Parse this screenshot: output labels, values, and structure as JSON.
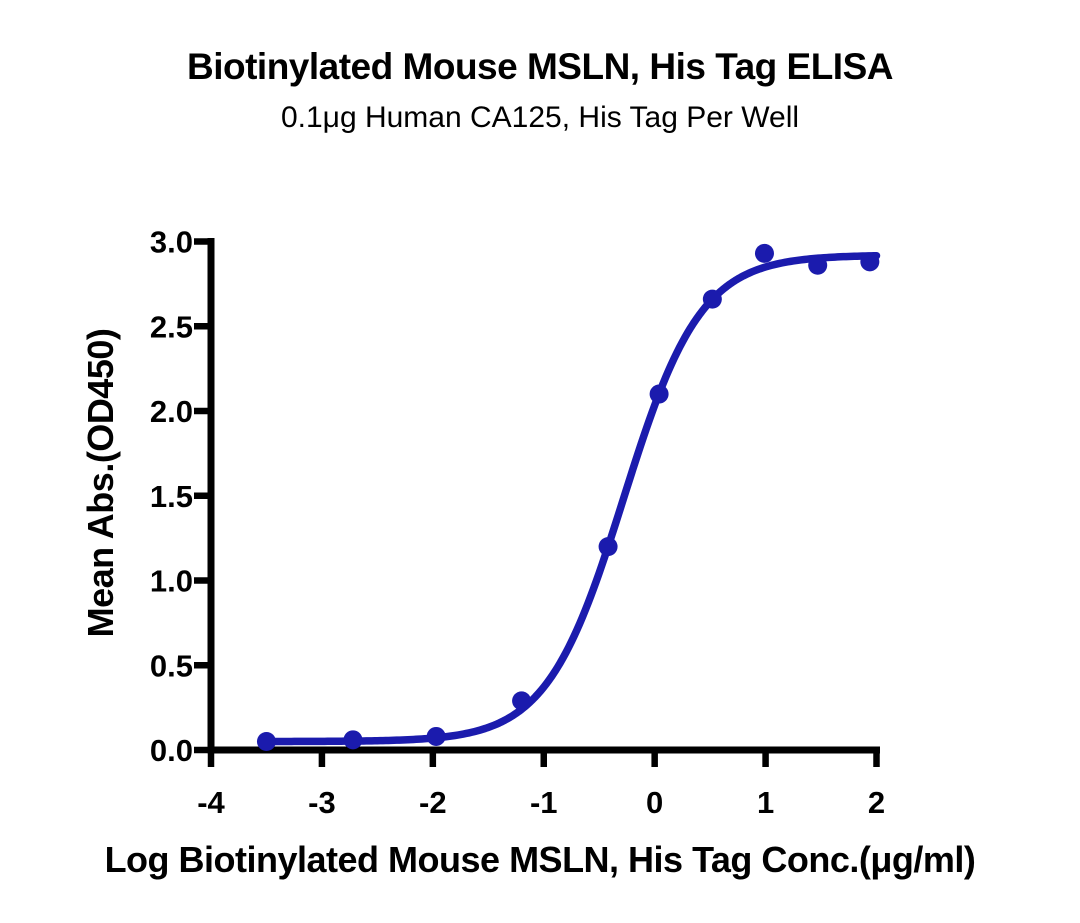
{
  "page": {
    "background_color": "#ffffff",
    "text_color": "#000000"
  },
  "chart_data": {
    "type": "line",
    "title": "Biotinylated Mouse MSLN, His Tag ELISA",
    "subtitle": "0.1μg Human CA125, His Tag Per Well",
    "xlabel": "Log Biotinylated Mouse MSLN, His Tag Conc.(μg/ml)",
    "ylabel": "Mean Abs.(OD450)",
    "xlim": [
      -4,
      2
    ],
    "ylim": [
      0,
      3
    ],
    "x_ticks": [
      -4,
      -3,
      -2,
      -1,
      0,
      1,
      2
    ],
    "y_ticks": [
      0,
      0.5,
      1,
      1.5,
      2,
      2.5,
      3
    ],
    "grid": false,
    "legend": "none",
    "axis_color": "#000000",
    "series": [
      {
        "marker": "circle",
        "color": "#1b1bad",
        "x": [
          -3.5,
          -2.72,
          -1.97,
          -1.2,
          -0.42,
          0.04,
          0.52,
          0.99,
          1.47,
          1.94
        ],
        "y": [
          0.05,
          0.06,
          0.08,
          0.29,
          1.2,
          2.1,
          2.66,
          2.93,
          2.86,
          2.88
        ]
      }
    ],
    "fit_curve": {
      "model": "4PL",
      "bottom": 0.05,
      "top": 2.92,
      "log_ec50": -0.28,
      "hill_slope": 1.25,
      "x_range": [
        -3.5,
        2.0
      ],
      "color": "#1b1bad"
    }
  }
}
